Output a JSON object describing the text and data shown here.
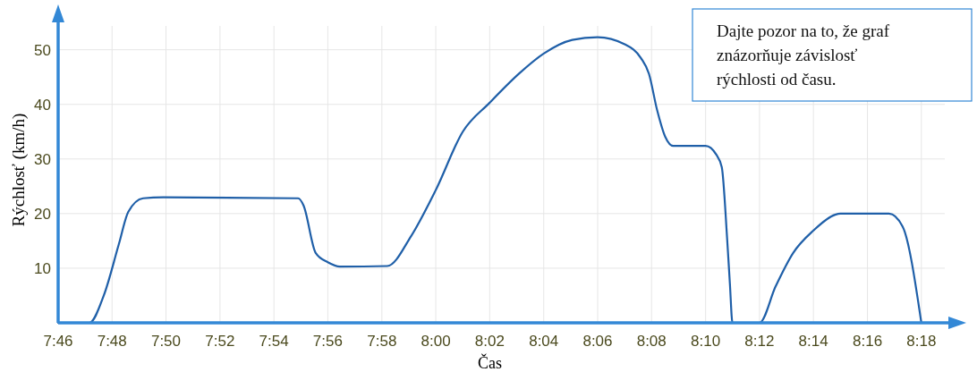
{
  "chart_data": {
    "type": "line",
    "xlabel": "Čas",
    "ylabel": "Rýchlosť (km/h)",
    "annotations": [
      "Dajte pozor na to, že graf znázorňuje závislosť rýchlosti od času."
    ],
    "x": [
      7.7667,
      7.786,
      7.795,
      7.8042,
      7.81,
      7.8192,
      7.8317,
      7.915,
      7.9183,
      7.9258,
      7.9333,
      7.9408,
      7.97,
      7.985,
      8.0,
      8.0167,
      8.0333,
      8.0517,
      8.0667,
      8.0843,
      8.1,
      8.1167,
      8.1267,
      8.1317,
      8.1367,
      8.1417,
      8.1467,
      8.1667,
      8.1733,
      8.1767,
      8.18,
      8.1817,
      8.1833,
      8.2,
      8.21,
      8.2208,
      8.2333,
      8.2467,
      8.25,
      8.28,
      8.2883,
      8.3
    ],
    "series": [
      {
        "color": "#1f5fa8",
        "values": [
          0,
          0,
          5.1,
          14.4,
          20.3,
          22.8,
          23,
          22.8,
          21.5,
          12.8,
          11.1,
          10.3,
          10.4,
          16,
          24.3,
          35,
          40.3,
          45.7,
          49.3,
          51.8,
          52.3,
          51,
          48.5,
          45.6,
          39,
          34.1,
          32.4,
          32.4,
          30.8,
          28.5,
          15.4,
          7.2,
          0,
          0,
          6.7,
          12.8,
          16.9,
          19.8,
          20,
          20,
          17.7,
          0
        ]
      }
    ],
    "xlim": [
      7.7667,
      8.32
    ],
    "ylim": [
      0,
      56
    ],
    "xticks": [
      {
        "value": 7.7667,
        "label": "7:46"
      },
      {
        "value": 7.8,
        "label": "7:48"
      },
      {
        "value": 7.8333,
        "label": "7:50"
      },
      {
        "value": 7.8667,
        "label": "7:52"
      },
      {
        "value": 7.9,
        "label": "7:54"
      },
      {
        "value": 7.9333,
        "label": "7:56"
      },
      {
        "value": 7.9667,
        "label": "7:58"
      },
      {
        "value": 8,
        "label": "8:00"
      },
      {
        "value": 8.0333,
        "label": "8:02"
      },
      {
        "value": 8.0667,
        "label": "8:04"
      },
      {
        "value": 8.1,
        "label": "8:06"
      },
      {
        "value": 8.1333,
        "label": "8:08"
      },
      {
        "value": 8.1667,
        "label": "8:10"
      },
      {
        "value": 8.2,
        "label": "8:12"
      },
      {
        "value": 8.2333,
        "label": "8:14"
      },
      {
        "value": 8.2667,
        "label": "8:16"
      },
      {
        "value": 8.3,
        "label": "8:18"
      }
    ],
    "yticks": [
      10,
      20,
      30,
      40,
      50
    ],
    "grid": true,
    "line_style": "solid",
    "marker": "none"
  }
}
